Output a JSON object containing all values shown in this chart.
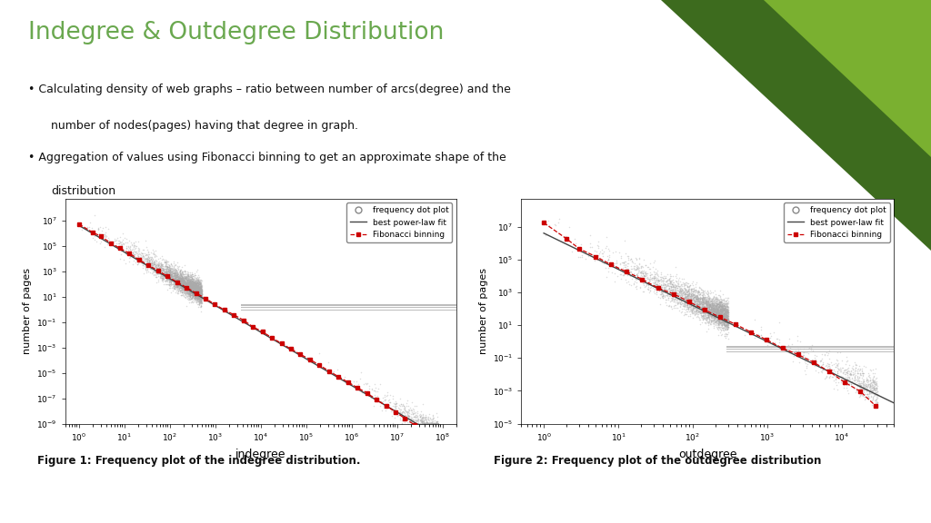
{
  "title": "Indegree & Outdegree Distribution",
  "title_color": "#6aa84f",
  "bullet1": "Calculating density of web graphs – ratio between number of arcs(degree) and the",
  "bullet1b": "number of nodes(pages) having that degree in graph.",
  "bullet2": "Aggregation of values using Fibonacci binning to get an approximate shape of the",
  "bullet2b": "distribution",
  "fig1_caption": "Figure 1: Frequency plot of the indegree distribution.",
  "fig2_caption": "Figure 2: Frequency plot of the outdegree distribution",
  "xlabel1": "indegree",
  "xlabel2": "outdegree",
  "ylabel": "number of pages",
  "legend_items": [
    "frequency dot plot",
    "best power-law fit",
    "Fibonacci binning"
  ],
  "bg_color": "#ffffff",
  "green_dark": "#3d6b1e",
  "green_light": "#7ab030",
  "scatter_color": "#aaaaaa",
  "power_law_color": "#444444",
  "fibonacci_color": "#cc0000"
}
